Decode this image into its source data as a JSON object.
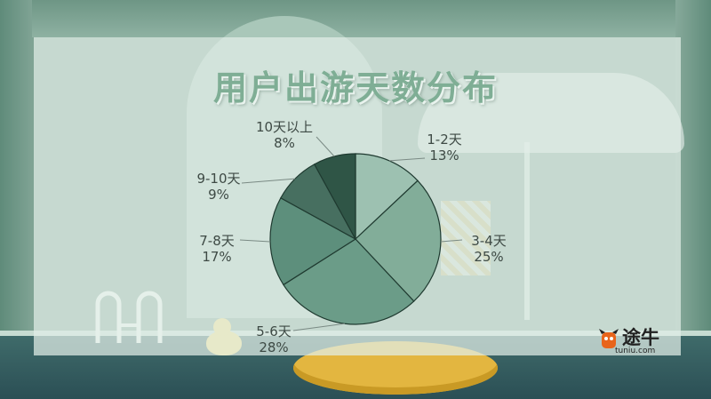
{
  "chart_data": {
    "type": "pie",
    "title": "用户出游天数分布",
    "categories": [
      "1-2天",
      "3-4天",
      "5-6天",
      "7-8天",
      "9-10天",
      "10天以上"
    ],
    "values": [
      13,
      25,
      28,
      17,
      9,
      8
    ],
    "value_labels": [
      "13%",
      "25%",
      "28%",
      "17%",
      "9%",
      "8%"
    ],
    "colors": [
      "#9dc1b1",
      "#82ad99",
      "#6b9c88",
      "#5d8f7c",
      "#476f60",
      "#2f5546"
    ]
  },
  "logo": {
    "name": "途牛",
    "url": "tuniu.com"
  }
}
